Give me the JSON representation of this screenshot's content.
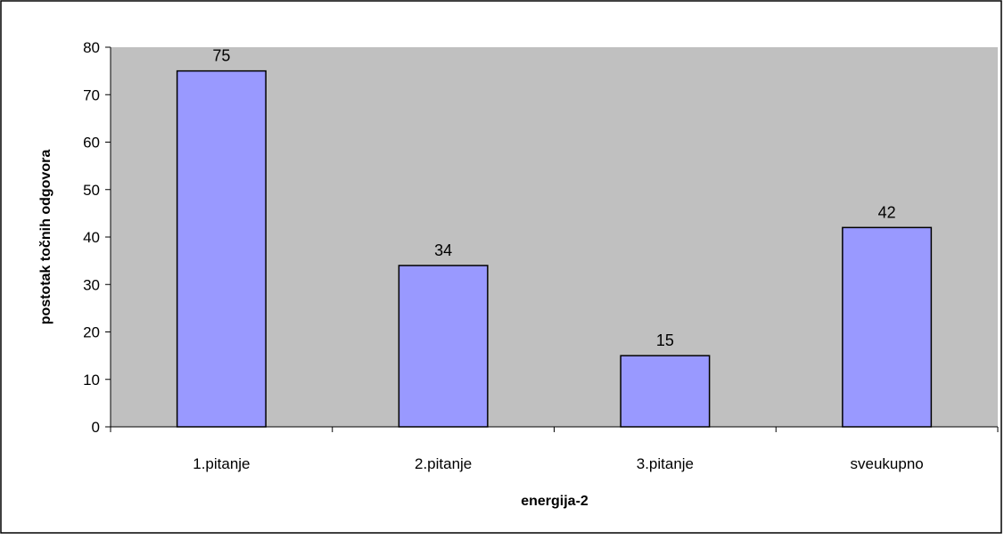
{
  "chart_data": {
    "type": "bar",
    "title": "",
    "xlabel": "energija-2",
    "ylabel": "postotak točnih odgovora",
    "categories": [
      "1.pitanje",
      "2.pitanje",
      "3.pitanje",
      "sveukupno"
    ],
    "values": [
      75,
      34,
      15,
      42
    ],
    "data_labels": [
      "75",
      "34",
      "15",
      "42"
    ],
    "ylim": [
      0,
      80
    ],
    "yticks": [
      0,
      10,
      20,
      30,
      40,
      50,
      60,
      70,
      80
    ],
    "grid": false,
    "legend": "none",
    "colors": {
      "bar_fill": "#9999ff",
      "bar_stroke": "#000000",
      "plot_background": "#c0c0c0",
      "chart_background": "#ffffff"
    }
  }
}
